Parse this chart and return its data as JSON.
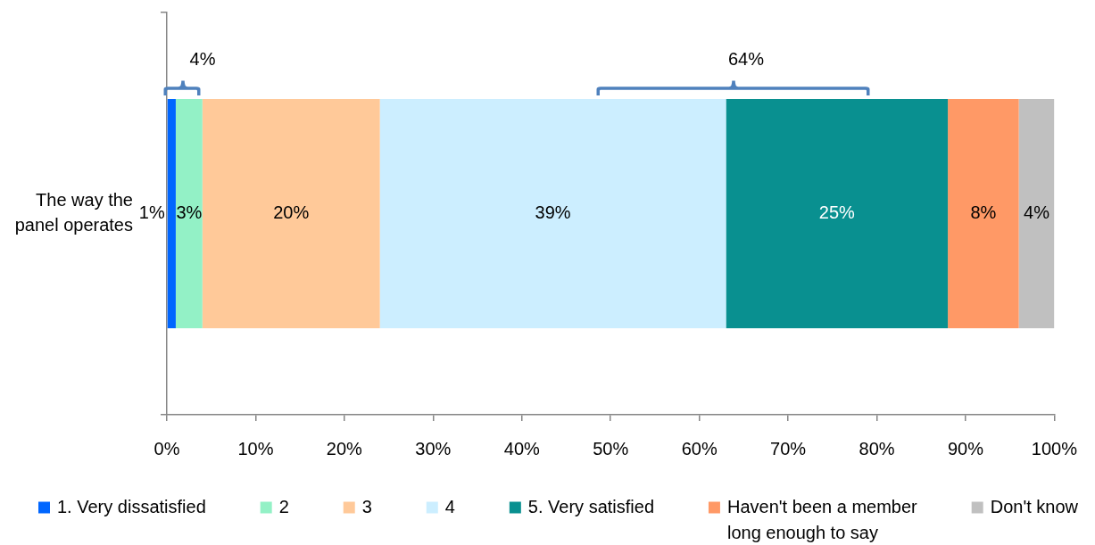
{
  "chart_data": {
    "type": "bar",
    "orientation": "horizontal",
    "stacked": true,
    "categories": [
      "The way the panel operates"
    ],
    "series": [
      {
        "name": "1. Very dissatisfied",
        "color": "#0066ff",
        "values": [
          1
        ],
        "value_labels": [
          "1%"
        ]
      },
      {
        "name": "2",
        "color": "#93f1c6",
        "values": [
          3
        ],
        "value_labels": [
          "3%"
        ]
      },
      {
        "name": "3",
        "color": "#ffc999",
        "values": [
          20
        ],
        "value_labels": [
          "20%"
        ]
      },
      {
        "name": "4",
        "color": "#cceeff",
        "values": [
          39
        ],
        "value_labels": [
          "39%"
        ]
      },
      {
        "name": "5. Very satisfied",
        "color": "#099090",
        "values": [
          25
        ],
        "value_labels": [
          "25%"
        ]
      },
      {
        "name": "Haven't been a member long enough to say",
        "color": "#ff9966",
        "values": [
          8
        ],
        "value_labels": [
          "8%"
        ]
      },
      {
        "name": "Don't know",
        "color": "#c0c0c0",
        "values": [
          4
        ],
        "value_labels": [
          "4%"
        ]
      }
    ],
    "xlim": [
      0,
      100
    ],
    "xticks": [
      {
        "value": 0,
        "label": "0%"
      },
      {
        "value": 10,
        "label": "10%"
      },
      {
        "value": 20,
        "label": "20%"
      },
      {
        "value": 30,
        "label": "30%"
      },
      {
        "value": 40,
        "label": "40%"
      },
      {
        "value": 50,
        "label": "50%"
      },
      {
        "value": 60,
        "label": "60%"
      },
      {
        "value": 70,
        "label": "70%"
      },
      {
        "value": 80,
        "label": "80%"
      },
      {
        "value": 90,
        "label": "90%"
      },
      {
        "value": 100,
        "label": "100%"
      }
    ],
    "legend": "bottom",
    "annotations": [
      "4%",
      "64%"
    ]
  }
}
